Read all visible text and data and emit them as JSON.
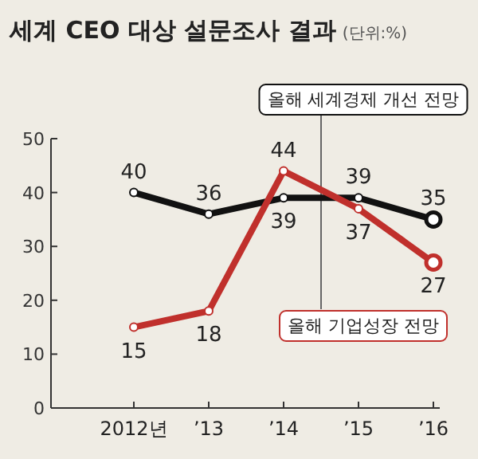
{
  "chart_data": {
    "type": "line",
    "title": "세계 CEO 대상 설문조사 결과",
    "subtitle": "(단위:%)",
    "categories": [
      "2012년",
      "’13",
      "’14",
      "’15",
      "’16"
    ],
    "series": [
      {
        "name": "올해 세계경제 개선 전망",
        "color": "#111111",
        "values": [
          40,
          36,
          39,
          39,
          35
        ]
      },
      {
        "name": "올해 기업성장 전망",
        "color": "#c0302c",
        "values": [
          15,
          18,
          44,
          37,
          27
        ]
      }
    ],
    "ylim": [
      0,
      50
    ],
    "yticks": [
      0,
      10,
      20,
      30,
      40,
      50
    ],
    "data_labels": true,
    "marker": "circle",
    "line_style": "solid",
    "grid": false
  }
}
